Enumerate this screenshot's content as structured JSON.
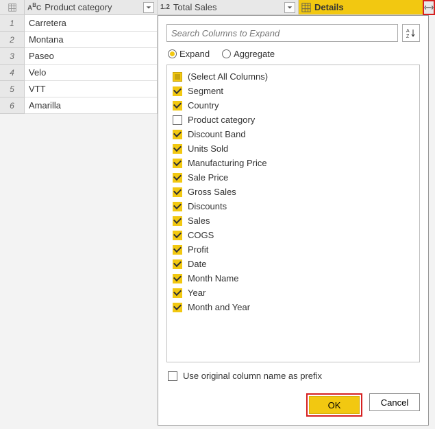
{
  "colors": {
    "accent": "#f2c811",
    "highlight_border": "#d62020",
    "header_bg": "#e8e8e8",
    "cell_bg": "#ffffff",
    "page_bg": "#f3f3f3",
    "border": "#cccccc",
    "text": "#333333"
  },
  "columns": {
    "col1": {
      "label": "Product category",
      "type_prefix": "A",
      "type_sup": "B",
      "type_suffix": "C"
    },
    "col2": {
      "label": "Total Sales",
      "type_label": "1.2"
    },
    "col3": {
      "label": "Details"
    }
  },
  "rows": [
    {
      "num": "1",
      "product": "Carretera"
    },
    {
      "num": "2",
      "product": "Montana"
    },
    {
      "num": "3",
      "product": "Paseo"
    },
    {
      "num": "4",
      "product": "Velo"
    },
    {
      "num": "5",
      "product": "VTT"
    },
    {
      "num": "6",
      "product": "Amarilla"
    }
  ],
  "popup": {
    "search_placeholder": "Search Columns to Expand",
    "sort_label": "A↓Z↓",
    "radio": {
      "expand": "Expand",
      "aggregate": "Aggregate",
      "selected": "expand"
    },
    "select_all": "(Select All Columns)",
    "columns": [
      {
        "label": "Segment",
        "checked": true
      },
      {
        "label": "Country",
        "checked": true
      },
      {
        "label": "Product category",
        "checked": false
      },
      {
        "label": "Discount Band",
        "checked": true
      },
      {
        "label": "Units Sold",
        "checked": true
      },
      {
        "label": "Manufacturing Price",
        "checked": true
      },
      {
        "label": "Sale Price",
        "checked": true
      },
      {
        "label": "Gross Sales",
        "checked": true
      },
      {
        "label": "Discounts",
        "checked": true
      },
      {
        "label": "Sales",
        "checked": true
      },
      {
        "label": "COGS",
        "checked": true
      },
      {
        "label": "Profit",
        "checked": true
      },
      {
        "label": "Date",
        "checked": true
      },
      {
        "label": "Month Name",
        "checked": true
      },
      {
        "label": "Year",
        "checked": true
      },
      {
        "label": "Month and Year",
        "checked": true
      }
    ],
    "prefix_label": "Use original column name as prefix",
    "prefix_checked": false,
    "ok_label": "OK",
    "cancel_label": "Cancel"
  }
}
